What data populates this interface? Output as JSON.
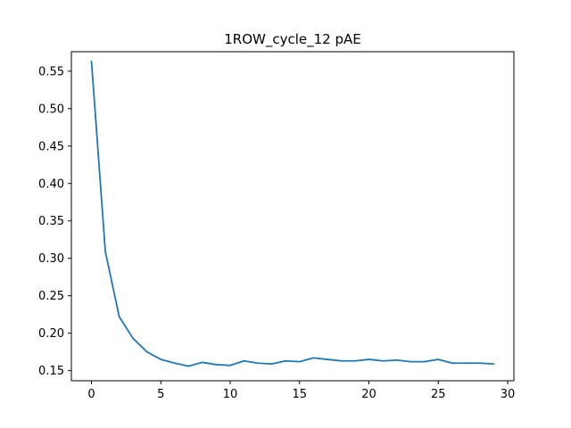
{
  "chart_data": {
    "type": "line",
    "title": "1ROW_cycle_12 pAE",
    "xlabel": "",
    "ylabel": "",
    "xlim": [
      -1.45,
      30.45
    ],
    "ylim": [
      0.1365,
      0.576
    ],
    "xticks": [
      0,
      5,
      10,
      15,
      20,
      25,
      30
    ],
    "yticks": [
      0.15,
      0.2,
      0.25,
      0.3,
      0.35,
      0.4,
      0.45,
      0.5,
      0.55
    ],
    "xtick_labels": [
      "0",
      "5",
      "10",
      "15",
      "20",
      "25",
      "30"
    ],
    "ytick_labels": [
      "0.15",
      "0.20",
      "0.25",
      "0.30",
      "0.35",
      "0.40",
      "0.45",
      "0.50",
      "0.55"
    ],
    "grid": false,
    "series": [
      {
        "color": "#1f77b4",
        "x": [
          0,
          1,
          2,
          3,
          4,
          5,
          6,
          7,
          8,
          9,
          10,
          11,
          12,
          13,
          14,
          15,
          16,
          17,
          18,
          19,
          20,
          21,
          22,
          23,
          24,
          25,
          26,
          27,
          28,
          29
        ],
        "y": [
          0.563,
          0.309,
          0.222,
          0.193,
          0.175,
          0.165,
          0.16,
          0.156,
          0.161,
          0.158,
          0.157,
          0.163,
          0.16,
          0.159,
          0.163,
          0.162,
          0.167,
          0.165,
          0.163,
          0.163,
          0.165,
          0.163,
          0.164,
          0.162,
          0.162,
          0.165,
          0.16,
          0.16,
          0.16,
          0.159
        ]
      }
    ]
  }
}
